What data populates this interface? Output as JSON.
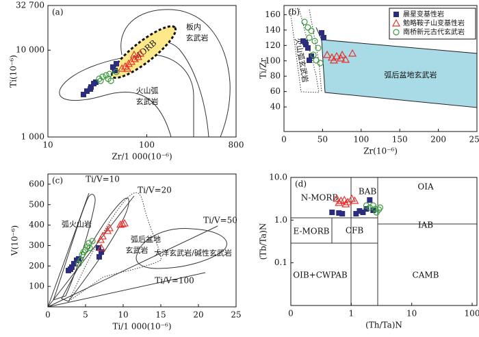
{
  "chart_data": [
    {
      "type": "scatter",
      "title": "(a)",
      "x_label": "Zr/1 000(10⁻⁶)",
      "y_label": "Ti(10⁻⁶)",
      "xlog": true,
      "ylog": true,
      "xlim": [
        10,
        800
      ],
      "ylim": [
        1000,
        32700
      ],
      "xticks": [
        10,
        100,
        800
      ],
      "yticks": [
        {
          "value": 1000,
          "label": "1 000"
        },
        {
          "value": 10000,
          "label": "10 000"
        },
        {
          "value": 32700,
          "label": "32 700"
        }
      ],
      "annotations": [
        "MORB",
        "板内",
        "玄武岩",
        "火山弧",
        "玄武岩"
      ],
      "series": [
        {
          "marker": "square",
          "color": "#2b2d7c",
          "x": [
            22.9,
            24.8,
            27.3,
            29.1,
            30.5,
            47.7,
            49.2,
            45.4,
            26.9
          ],
          "values": [
            3085,
            3375,
            3767,
            4121,
            4276,
            5821,
            6982,
            6378,
            3565
          ]
        },
        {
          "marker": "triangle",
          "color": "#e8312f",
          "x": [
            56,
            60.5,
            65.6,
            69.8,
            75.7,
            81.8,
            63.6,
            74.5,
            85.9
          ],
          "values": [
            6150,
            6490,
            6982,
            7376,
            7925,
            8375,
            6150,
            8850,
            9170
          ]
        },
        {
          "marker": "circle",
          "color": "#3a9a3a",
          "x": [
            35.8,
            38.8,
            42,
            34.1,
            43.4,
            49.2,
            40.7,
            33
          ],
          "values": [
            4943,
            5129,
            5321,
            4436,
            4436,
            5610,
            4680,
            4680
          ]
        }
      ]
    },
    {
      "type": "scatter",
      "title": "(b)",
      "x_label": "Zr(10⁻⁶)",
      "y_label": "Ti/Zr",
      "xlim": [
        0,
        250
      ],
      "ylim": [
        8,
        172
      ],
      "xticks": [
        0,
        50,
        100,
        150,
        200,
        250
      ],
      "yticks": [
        40,
        60,
        80,
        100,
        120,
        140,
        160
      ],
      "legend": "upper right",
      "annotations": [
        "火山弧玄武岩",
        "弧后盆地玄武岩"
      ],
      "series": [
        {
          "name": "晨星变基性岩",
          "marker": "square",
          "color": "#2b2d7c",
          "x": [
            24.8,
            28.4,
            31,
            48.8,
            51.4,
            35.5,
            32.8,
            27.5
          ],
          "values": [
            125.7,
            121.2,
            116.7,
            136.4,
            130.1,
            106,
            100.7,
            123.9
          ]
        },
        {
          "name": "勉略鞍子山变基性岩",
          "marker": "triangle",
          "color": "#e8312f",
          "x": [
            55.9,
            62.1,
            68.3,
            73.6,
            79.8,
            88.7,
            64.7,
            75.4
          ],
          "values": [
            107.8,
            104.3,
            106,
            103.4,
            101.6,
            109.6,
            100.7,
            107.8
          ]
        },
        {
          "name": "南桥新元古代玄武岩",
          "marker": "circle",
          "color": "#3a9a3a",
          "x": [
            26.6,
            31,
            35.5,
            39.9,
            44.3,
            41.7,
            47,
            32.8,
            38.1
          ],
          "values": [
            150.6,
            143.5,
            139,
            125.7,
            116.7,
            100.7,
            97.1,
            130.1,
            107.8
          ]
        }
      ]
    },
    {
      "type": "scatter",
      "title": "(c)",
      "x_label": "Ti/1 000(10⁻⁶)",
      "y_label": "V(10⁻⁶)",
      "xlim": [
        0,
        25
      ],
      "ylim": [
        0,
        650
      ],
      "xticks": [
        0,
        5,
        10,
        15,
        20,
        25
      ],
      "yticks": [
        100,
        200,
        300,
        400,
        500,
        600
      ],
      "annotations": [
        "Ti/V=10",
        "Ti/V=20",
        "Ti/V=50",
        "Ti/V=100",
        "弧火山岩",
        "弧后盆地",
        "玄武岩",
        "大洋玄武岩/碱性玄武岩"
      ],
      "series": [
        {
          "marker": "square",
          "color": "#2b2d7c",
          "x": [
            2.73,
            3.18,
            3.45,
            3.82,
            4.09,
            6.82,
            7.09,
            6.73,
            3.0
          ],
          "values": [
            177.7,
            194.4,
            211.2,
            228,
            234.7,
            244.7,
            268.2,
            288.3,
            184.4
          ]
        },
        {
          "marker": "triangle",
          "color": "#e8312f",
          "x": [
            7.0,
            7.27,
            7.91,
            8.18,
            9.64,
            9.91,
            10.18,
            7.09
          ],
          "values": [
            328.5,
            345.3,
            372.1,
            385.5,
            402.3,
            405.6,
            409,
            288.3
          ]
        },
        {
          "marker": "circle",
          "color": "#3a9a3a",
          "x": [
            4.36,
            4.55,
            5.0,
            5.27,
            5.55,
            4.09,
            4.73,
            5.45,
            5.91
          ],
          "values": [
            228,
            254.8,
            278.2,
            295,
            288.3,
            211.2,
            268.2,
            311.8,
            321.8
          ]
        }
      ]
    },
    {
      "type": "scatter",
      "title": "(d)",
      "x_label": "(Th/Ta)N",
      "y_label": "(Tb/Ta)N",
      "xlog": true,
      "ylog": true,
      "xlim": [
        0.1,
        120
      ],
      "ylim": [
        0.01,
        10
      ],
      "xticks": [
        {
          "value": 0.1,
          "label": "0"
        },
        1,
        10,
        100
      ],
      "yticks": [
        {
          "value": 0.1,
          "label": "0.1"
        },
        {
          "value": 1,
          "label": "1.0"
        },
        {
          "value": 10,
          "label": "10.0"
        }
      ],
      "annotations": [
        "N-MORB",
        "BAB",
        "OIA",
        "E-MORB",
        "CFB",
        "IAB",
        "OIB+CWPAB",
        "CAMB"
      ],
      "series": [
        {
          "marker": "square",
          "color": "#2b2d7c",
          "x": [
            0.481,
            0.624,
            1.2,
            1.37,
            1.56,
            2.02,
            1.78,
            2.3,
            0.71
          ],
          "values": [
            1.52,
            1.47,
            1.41,
            1.64,
            1.52,
            2.96,
            1.83,
            1.7,
            1.41
          ]
        },
        {
          "marker": "triangle",
          "color": "#e8312f",
          "x": [
            0.577,
            0.676,
            0.77,
            0.876,
            1.02,
            1.14,
            0.81,
            0.624
          ],
          "values": [
            3.18,
            2.85,
            2.96,
            2.65,
            3.18,
            2.85,
            2.37,
            2.55
          ]
        },
        {
          "marker": "circle",
          "color": "#3a9a3a",
          "x": [
            2.02,
            2.5,
            2.62,
            2.85,
            2.3,
            1.78,
            3.0
          ],
          "values": [
            1.97,
            1.83,
            1.52,
            1.76,
            2.2,
            2.2,
            1.97
          ]
        }
      ]
    }
  ]
}
